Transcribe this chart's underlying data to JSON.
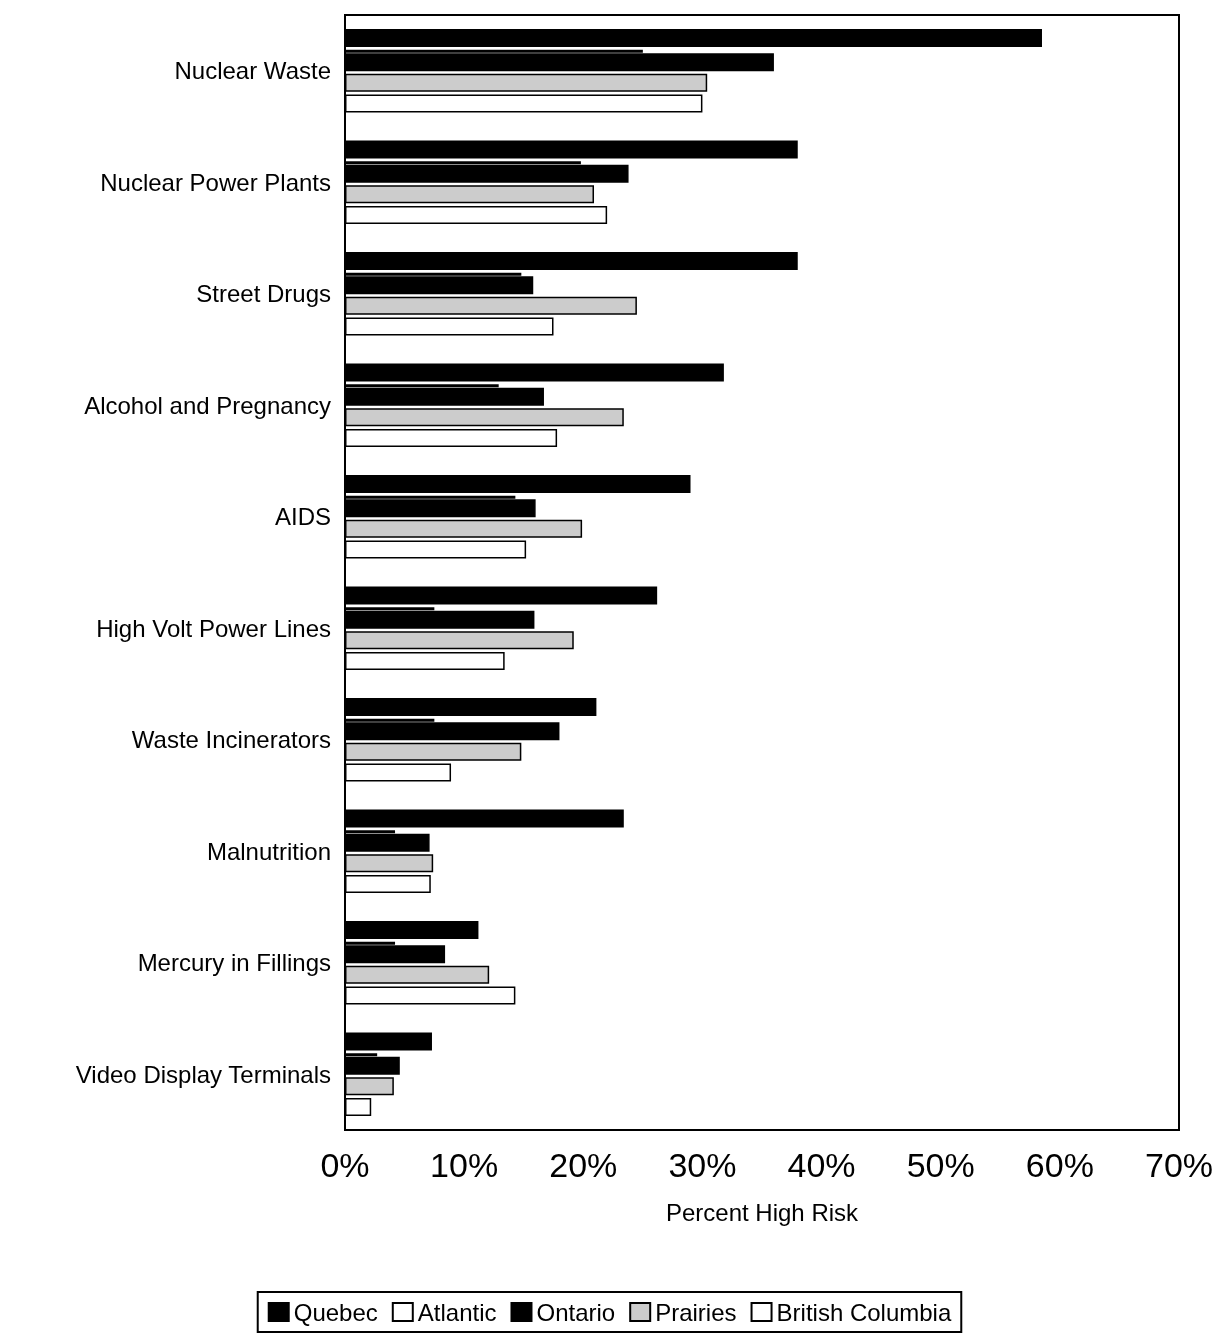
{
  "chart_data": {
    "type": "bar",
    "orientation": "horizontal",
    "xlabel": "Percent High Risk",
    "categories": [
      "Nuclear Waste",
      "Nuclear Power Plants",
      "Street Drugs",
      "Alcohol and Pregnancy",
      "AIDS",
      "High Volt Power Lines",
      "Waste Incinerators",
      "Malnutrition",
      "Mercury in Fillings",
      "Video Display Terminals"
    ],
    "series": [
      {
        "name": "Quebec",
        "color": "#000000",
        "values": [
          58.5,
          38,
          38,
          31.8,
          29,
          26.2,
          21.1,
          23.4,
          11.2,
          7.3
        ]
      },
      {
        "name": "Atlantic",
        "color": "#ffffff",
        "values": [
          25,
          19.8,
          14.8,
          12.9,
          14.3,
          7.5,
          7.5,
          4.2,
          4.2,
          2.7
        ]
      },
      {
        "name": "Ontario",
        "color": "#000000",
        "values": [
          36,
          23.8,
          15.8,
          16.7,
          16,
          15.9,
          18,
          7.1,
          8.4,
          4.6
        ]
      },
      {
        "name": "Prairies",
        "color": "#cccccc",
        "values": [
          30.4,
          20.9,
          24.5,
          23.4,
          19.9,
          19.2,
          14.8,
          7.4,
          12.1,
          4.1
        ]
      },
      {
        "name": "British Columbia",
        "color": "#ffffff",
        "values": [
          30,
          22,
          17.5,
          17.8,
          15.2,
          13.4,
          8.9,
          7.2,
          14.3,
          2.2
        ]
      }
    ],
    "xlim": [
      0,
      70
    ],
    "xticks": [
      {
        "value": 0,
        "label": "0%"
      },
      {
        "value": 10,
        "label": "10%"
      },
      {
        "value": 20,
        "label": "20%"
      },
      {
        "value": 30,
        "label": "30%"
      },
      {
        "value": 40,
        "label": "40%"
      },
      {
        "value": 50,
        "label": "50%"
      },
      {
        "value": 60,
        "label": "60%"
      },
      {
        "value": 70,
        "label": "70%"
      }
    ],
    "grid": false,
    "legend": "bottom"
  }
}
